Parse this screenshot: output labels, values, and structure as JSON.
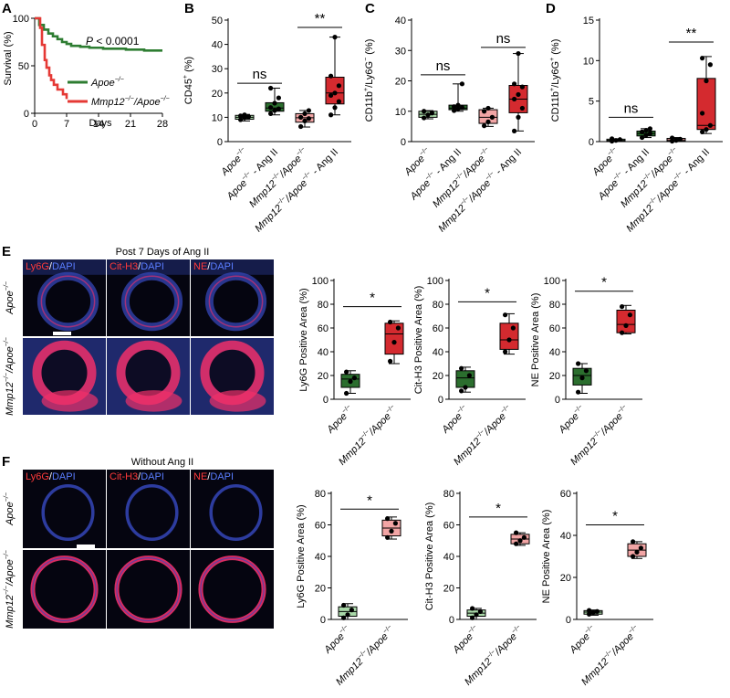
{
  "panel_labels": [
    "A",
    "B",
    "C",
    "D",
    "E",
    "F"
  ],
  "colors": {
    "green_light": "#a9d8a8",
    "green_dark": "#2b6e2e",
    "red_light": "#f2a5a5",
    "red_dark": "#d42a2f",
    "km_green": "#2e7d32",
    "km_red": "#e53935",
    "dapi": "#3547b8",
    "stain": "#f0306a"
  },
  "genotype_labels": {
    "apoe": "Apoe",
    "apoe_sup": "−/−",
    "apoe_ang": "Apoe",
    "apoe_ang_sup": "−/−",
    "apoe_ang_suffix": " - Ang II",
    "mmp": "Mmp12",
    "mmp_sup": "−/−",
    "mmp_apoe_sep": "/Apoe",
    "mmp_apoe_sup": "−/−",
    "ang_suffix": " - Ang II"
  },
  "imaging": {
    "e_header": "Post 7 Days of Ang II",
    "f_header": "Without Ang II",
    "channels": [
      {
        "stain": "Ly6G",
        "sep": "/",
        "dapi": "DAPI"
      },
      {
        "stain": "Cit-H3",
        "sep": "/",
        "dapi": "DAPI"
      },
      {
        "stain": "NE",
        "sep": "/",
        "dapi": "DAPI"
      }
    ]
  },
  "chart_data": [
    {
      "panel": "A",
      "type": "line",
      "ylabel": "Survival (%)",
      "xlabel": "Days",
      "xlim": [
        0,
        28
      ],
      "ylim": [
        0,
        100
      ],
      "xticks": [
        0,
        7,
        14,
        21,
        28
      ],
      "yticks": [
        0,
        50,
        100
      ],
      "annotation_p": "P",
      "annotation_rest": " < 0.0001",
      "series": [
        {
          "name": "Apoe−/−",
          "color": "#2e7d32",
          "x": [
            0,
            1,
            2,
            3,
            4,
            5,
            6,
            7,
            8,
            10,
            12,
            14,
            15,
            17,
            20,
            22,
            24,
            26,
            28
          ],
          "y": [
            100,
            93,
            88,
            84,
            81,
            78,
            75,
            73,
            71,
            70,
            69,
            69,
            68,
            68,
            67,
            67,
            66,
            66,
            66
          ]
        },
        {
          "name": "Mmp12−/−/Apoe−/−",
          "color": "#e53935",
          "x": [
            0,
            1.2,
            1.6,
            2.2,
            2.6,
            3.2,
            3.6,
            4.2,
            5.0,
            6.2,
            7
          ],
          "y": [
            100,
            90,
            72,
            56,
            48,
            40,
            35,
            30,
            25,
            20,
            15
          ]
        }
      ]
    },
    {
      "panel": "B",
      "type": "box",
      "ylabel": "CD45+ (%)",
      "ylabel_main": "CD45",
      "ylabel_sup": "+",
      "ylabel_tail": " (%)",
      "ylim": [
        0,
        50
      ],
      "yticks": [
        0,
        10,
        20,
        30,
        40,
        50
      ],
      "groups": [
        {
          "q1": 9.2,
          "med": 10.0,
          "q3": 10.8,
          "min": 8.5,
          "max": 11.2,
          "points": [
            9.0,
            9.8,
            10.2,
            10.6,
            11.0
          ]
        },
        {
          "q1": 12.5,
          "med": 13.8,
          "q3": 16.0,
          "min": 11.0,
          "max": 22.0,
          "points": [
            11.5,
            12.8,
            13.5,
            14.0,
            15.8,
            18.0,
            22.0
          ]
        },
        {
          "q1": 8.0,
          "med": 9.8,
          "q3": 11.5,
          "min": 6.0,
          "max": 12.8,
          "points": [
            6.2,
            8.5,
            9.5,
            10.0,
            11.5,
            12.8
          ]
        },
        {
          "q1": 15.5,
          "med": 20.0,
          "q3": 26.5,
          "min": 11.0,
          "max": 43.0,
          "points": [
            11.0,
            14.0,
            16.5,
            19.0,
            20.0,
            23.0,
            27.0,
            43.0
          ]
        }
      ],
      "sig": [
        {
          "from": 0,
          "to": 1,
          "label": "ns",
          "y": 24
        },
        {
          "from": 2,
          "to": 3,
          "label": "**",
          "y": 47
        }
      ]
    },
    {
      "panel": "C",
      "type": "box",
      "ylabel": "CD11b+/Ly6G- (%)",
      "ylabel_main": "CD11b",
      "ylabel_sup": "+",
      "ylabel_mid": "/Ly6G",
      "ylabel_sup2": "−",
      "ylabel_tail": " (%)",
      "ylim": [
        0,
        40
      ],
      "yticks": [
        0,
        10,
        20,
        30,
        40
      ],
      "groups": [
        {
          "q1": 8.0,
          "med": 9.0,
          "q3": 10.0,
          "min": 7.5,
          "max": 10.2,
          "points": [
            7.8,
            8.8,
            9.4,
            10.0
          ]
        },
        {
          "q1": 10.5,
          "med": 11.0,
          "q3": 12.0,
          "min": 10.0,
          "max": 19.0,
          "points": [
            10.2,
            10.8,
            11.2,
            11.5,
            12.0,
            19.0
          ]
        },
        {
          "q1": 6.0,
          "med": 8.0,
          "q3": 10.5,
          "min": 5.0,
          "max": 11.0,
          "points": [
            5.2,
            6.5,
            8.0,
            10.0,
            11.0
          ]
        },
        {
          "q1": 9.5,
          "med": 14.0,
          "q3": 18.5,
          "min": 3.5,
          "max": 29.0,
          "points": [
            3.5,
            8.0,
            11.0,
            14.0,
            15.5,
            18.0,
            19.0,
            29.0
          ]
        }
      ],
      "sig": [
        {
          "from": 0,
          "to": 1,
          "label": "ns",
          "y": 22
        },
        {
          "from": 2,
          "to": 3,
          "label": "ns",
          "y": 31
        }
      ]
    },
    {
      "panel": "D",
      "type": "box",
      "ylabel": "CD11b+/Ly6G+ (%)",
      "ylabel_main": "CD11b",
      "ylabel_sup": "+",
      "ylabel_mid": "/Ly6G",
      "ylabel_sup2": "+",
      "ylabel_tail": " (%)",
      "ylim": [
        0,
        15
      ],
      "yticks": [
        0,
        5,
        10,
        15
      ],
      "groups": [
        {
          "q1": 0.05,
          "med": 0.15,
          "q3": 0.3,
          "min": 0.0,
          "max": 0.35,
          "points": [
            0.05,
            0.15,
            0.25,
            0.35
          ]
        },
        {
          "q1": 0.7,
          "med": 1.0,
          "q3": 1.3,
          "min": 0.5,
          "max": 1.6,
          "points": [
            0.5,
            0.8,
            1.0,
            1.2,
            1.4,
            1.6
          ]
        },
        {
          "q1": 0.05,
          "med": 0.2,
          "q3": 0.4,
          "min": 0.0,
          "max": 0.5,
          "points": [
            0.05,
            0.15,
            0.3,
            0.45
          ]
        },
        {
          "q1": 1.5,
          "med": 2.0,
          "q3": 7.8,
          "min": 1.0,
          "max": 10.5,
          "points": [
            1.2,
            1.5,
            2.0,
            3.5,
            7.5,
            9.5,
            10.3
          ]
        }
      ],
      "sig": [
        {
          "from": 0,
          "to": 1,
          "label": "ns",
          "y": 3.0
        },
        {
          "from": 2,
          "to": 3,
          "label": "**",
          "y": 12.3
        }
      ]
    },
    {
      "panel": "E1",
      "type": "box",
      "ylabel": "Ly6G Positive Area (%)",
      "ylim": [
        0,
        100
      ],
      "yticks": [
        0,
        20,
        40,
        60,
        80,
        100
      ],
      "groups": [
        {
          "q1": 10,
          "med": 17,
          "q3": 21,
          "min": 5,
          "max": 24,
          "points": [
            5,
            15,
            18,
            23
          ]
        },
        {
          "q1": 38,
          "med": 55,
          "q3": 64,
          "min": 30,
          "max": 66,
          "points": [
            32,
            48,
            60,
            65
          ]
        }
      ],
      "sig": [
        {
          "from": 0,
          "to": 1,
          "label": "*",
          "y": 78
        }
      ]
    },
    {
      "panel": "E2",
      "type": "box",
      "ylabel": "Cit-H3 Positive Area (%)",
      "ylim": [
        0,
        100
      ],
      "yticks": [
        0,
        20,
        40,
        60,
        80,
        100
      ],
      "groups": [
        {
          "q1": 10,
          "med": 18,
          "q3": 24,
          "min": 6,
          "max": 27,
          "points": [
            7,
            10,
            20,
            26
          ]
        },
        {
          "q1": 42,
          "med": 50,
          "q3": 64,
          "min": 38,
          "max": 72,
          "points": [
            40,
            50,
            60,
            71
          ]
        }
      ],
      "sig": [
        {
          "from": 0,
          "to": 1,
          "label": "*",
          "y": 82
        }
      ]
    },
    {
      "panel": "E3",
      "type": "box",
      "ylabel": "NE Positive Area (%)",
      "ylim": [
        0,
        100
      ],
      "yticks": [
        0,
        20,
        40,
        60,
        80,
        100
      ],
      "groups": [
        {
          "q1": 12,
          "med": 20,
          "q3": 26,
          "min": 5,
          "max": 30,
          "points": [
            6,
            18,
            24,
            30
          ]
        },
        {
          "q1": 56,
          "med": 63,
          "q3": 75,
          "min": 55,
          "max": 79,
          "points": [
            56,
            62,
            71,
            78
          ]
        }
      ],
      "sig": [
        {
          "from": 0,
          "to": 1,
          "label": "*",
          "y": 91
        }
      ]
    },
    {
      "panel": "F1",
      "type": "box",
      "ylabel": "Ly6G Positive Area (%)",
      "ylim": [
        0,
        80
      ],
      "yticks": [
        0,
        20,
        40,
        60,
        80
      ],
      "groups": [
        {
          "q1": 2,
          "med": 5,
          "q3": 8,
          "min": 0,
          "max": 10,
          "points": [
            1,
            3,
            6,
            9
          ]
        },
        {
          "q1": 53,
          "med": 58,
          "q3": 63,
          "min": 51,
          "max": 65,
          "points": [
            52,
            56,
            61,
            64
          ]
        }
      ],
      "sig": [
        {
          "from": 0,
          "to": 1,
          "label": "*",
          "y": 70
        }
      ]
    },
    {
      "panel": "F2",
      "type": "box",
      "ylabel": "Cit-H3 Positive Area (%)",
      "ylim": [
        0,
        80
      ],
      "yticks": [
        0,
        20,
        40,
        60,
        80
      ],
      "groups": [
        {
          "q1": 2,
          "med": 4,
          "q3": 6,
          "min": 0,
          "max": 7,
          "points": [
            1,
            3,
            5,
            7
          ]
        },
        {
          "q1": 48,
          "med": 51,
          "q3": 54,
          "min": 47,
          "max": 55,
          "points": [
            48,
            50,
            52,
            55
          ]
        }
      ],
      "sig": [
        {
          "from": 0,
          "to": 1,
          "label": "*",
          "y": 65
        }
      ]
    },
    {
      "panel": "F3",
      "type": "box",
      "ylabel": "NE Positive Area (%)",
      "ylim": [
        0,
        60
      ],
      "yticks": [
        0,
        20,
        40,
        60
      ],
      "groups": [
        {
          "q1": 2.5,
          "med": 3.5,
          "q3": 4.2,
          "min": 2,
          "max": 4.5,
          "points": [
            2.5,
            3.2,
            3.8,
            4.3
          ]
        },
        {
          "q1": 30,
          "med": 33,
          "q3": 36,
          "min": 29,
          "max": 37,
          "points": [
            30,
            32,
            34,
            37
          ]
        }
      ],
      "sig": [
        {
          "from": 0,
          "to": 1,
          "label": "*",
          "y": 45
        }
      ]
    }
  ]
}
